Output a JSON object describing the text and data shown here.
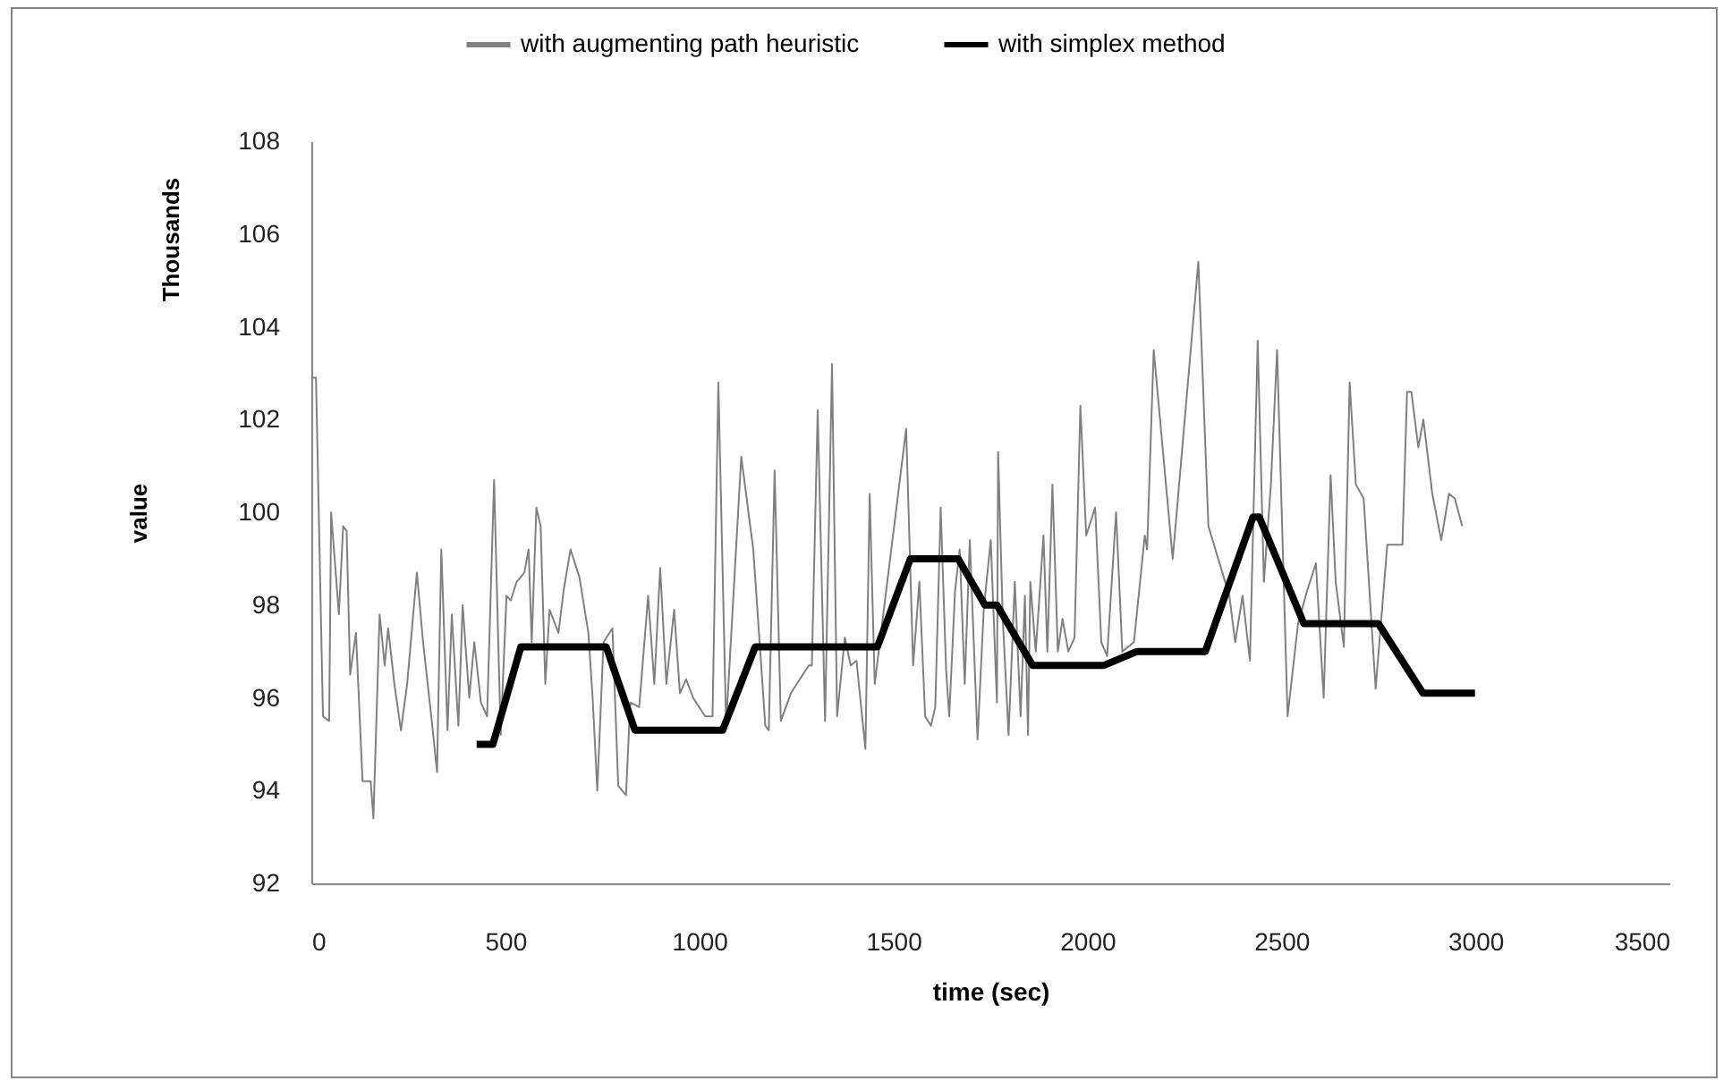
{
  "chart_data": {
    "type": "line",
    "xlabel": "time (sec)",
    "ylabel": "value",
    "annotations": [
      "Thousands"
    ],
    "xlim": [
      0,
      3500
    ],
    "xticks": [
      0,
      500,
      1000,
      1500,
      2000,
      2500,
      3000,
      3500
    ],
    "ylim": [
      92,
      108
    ],
    "yticks": [
      92,
      94,
      96,
      98,
      100,
      102,
      104,
      106,
      108
    ],
    "grid": false,
    "legend": "top",
    "marker": "none",
    "line_style": "solid",
    "series": [
      {
        "name": "with augmenting path heuristic",
        "color": "#808080",
        "x": [
          0,
          12,
          30,
          46,
          51,
          71,
          82,
          91,
          100,
          115,
          132,
          153,
          160,
          176,
          189,
          198,
          214,
          231,
          247,
          272,
          288,
          313,
          324,
          335,
          351,
          362,
          379,
          390,
          407,
          420,
          437,
          453,
          471,
          488,
          503,
          514,
          529,
          549,
          560,
          568,
          580,
          591,
          603,
          614,
          637,
          650,
          668,
          691,
          714,
          725,
          737,
          753,
          776,
          791,
          811,
          822,
          845,
          868,
          884,
          899,
          915,
          935,
          950,
          966,
          984,
          1015,
          1034,
          1049,
          1069,
          1108,
          1139,
          1170,
          1179,
          1194,
          1210,
          1236,
          1282,
          1290,
          1305,
          1324,
          1342,
          1355,
          1375,
          1390,
          1405,
          1428,
          1439,
          1452,
          1533,
          1551,
          1567,
          1582,
          1597,
          1608,
          1622,
          1636,
          1644,
          1659,
          1671,
          1684,
          1697,
          1717,
          1733,
          1751,
          1767,
          1770,
          1782,
          1797,
          1813,
          1828,
          1839,
          1847,
          1853,
          1867,
          1887,
          1897,
          1910,
          1924,
          1936,
          1951,
          1967,
          1982,
          1997,
          2020,
          2036,
          2051,
          2074,
          2090,
          2120,
          2148,
          2154,
          2171,
          2220,
          2286,
          2312,
          2366,
          2381,
          2400,
          2419,
          2439,
          2455,
          2473,
          2489,
          2516,
          2543,
          2566,
          2589,
          2609,
          2627,
          2640,
          2661,
          2676,
          2692,
          2712,
          2743,
          2773,
          2812,
          2824,
          2835,
          2853,
          2866,
          2889,
          2912,
          2932,
          2947,
          2966
        ],
        "values": [
          102.9,
          102.9,
          95.6,
          95.5,
          100.0,
          97.8,
          99.7,
          99.6,
          96.5,
          97.4,
          94.2,
          94.2,
          93.4,
          97.8,
          96.7,
          97.5,
          96.3,
          95.3,
          96.3,
          98.7,
          97.2,
          95.3,
          94.4,
          99.2,
          95.3,
          97.8,
          95.4,
          98.0,
          96.0,
          97.2,
          95.9,
          95.6,
          100.7,
          95.2,
          98.2,
          98.1,
          98.5,
          98.7,
          99.2,
          97.2,
          100.1,
          99.7,
          96.3,
          97.9,
          97.4,
          98.3,
          99.2,
          98.6,
          97.4,
          96.0,
          94.0,
          97.2,
          97.5,
          94.1,
          93.9,
          95.9,
          95.8,
          98.2,
          96.3,
          98.8,
          96.3,
          97.9,
          96.1,
          96.4,
          96.0,
          95.6,
          95.6,
          102.8,
          95.4,
          101.2,
          99.2,
          95.4,
          95.3,
          100.9,
          95.5,
          96.1,
          96.7,
          96.7,
          102.2,
          95.5,
          103.2,
          95.6,
          97.3,
          96.7,
          96.8,
          94.9,
          100.4,
          96.3,
          101.8,
          96.7,
          98.5,
          95.6,
          95.4,
          95.8,
          100.1,
          96.6,
          95.6,
          98.3,
          99.2,
          96.3,
          99.4,
          95.1,
          97.9,
          99.4,
          95.9,
          101.3,
          97.7,
          95.2,
          98.5,
          95.6,
          98.2,
          95.2,
          98.5,
          97.0,
          99.5,
          97.0,
          100.6,
          97.0,
          97.7,
          97.0,
          97.3,
          102.3,
          99.5,
          100.1,
          97.2,
          96.9,
          100.0,
          97.0,
          97.2,
          99.5,
          99.2,
          103.5,
          99.0,
          105.4,
          99.7,
          98.2,
          97.2,
          98.2,
          96.8,
          103.7,
          98.5,
          100.6,
          103.5,
          95.6,
          97.6,
          98.3,
          98.9,
          96.0,
          100.8,
          98.5,
          97.1,
          102.8,
          100.6,
          100.3,
          96.2,
          99.3,
          99.3,
          102.6,
          102.6,
          101.4,
          102.0,
          100.4,
          99.4,
          100.4,
          100.3,
          99.7
        ]
      },
      {
        "name": "with simplex method",
        "color": "#000000",
        "x": [
          426,
          468,
          540,
          760,
          834,
          1060,
          1144,
          1459,
          1544,
          1667,
          1736,
          1767,
          1859,
          2043,
          2128,
          2304,
          2427,
          2443,
          2558,
          2750,
          2865,
          2999
        ],
        "values": [
          95.0,
          95.0,
          97.1,
          97.1,
          95.3,
          95.3,
          97.1,
          97.1,
          99.0,
          99.0,
          98.0,
          98.0,
          96.7,
          96.7,
          97.0,
          97.0,
          99.9,
          99.9,
          97.6,
          97.6,
          96.1,
          96.1
        ]
      }
    ]
  }
}
